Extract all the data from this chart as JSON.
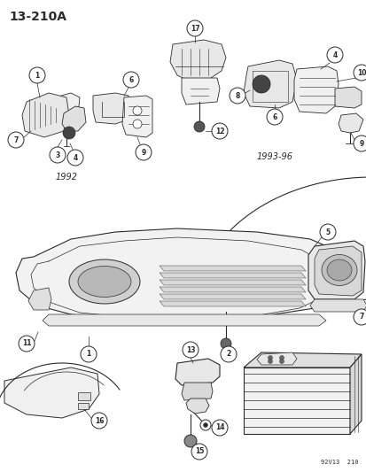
{
  "title": "13-210A",
  "footer": "92V13  210",
  "bg_color": "#ffffff",
  "lc": "#2a2a2a",
  "year_1992": "1992",
  "year_1993": "1993-96",
  "fig_width": 4.14,
  "fig_height": 5.33,
  "dpi": 100
}
